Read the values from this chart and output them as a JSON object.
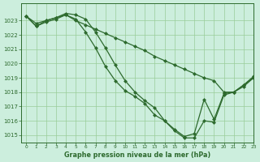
{
  "title": "Graphe pression niveau de la mer (hPa)",
  "bg_color": "#cceedd",
  "grid_color": "#99cc99",
  "line_color": "#2d6a2d",
  "xlim": [
    -0.5,
    23
  ],
  "ylim": [
    1014.5,
    1024.2
  ],
  "yticks": [
    1015,
    1016,
    1017,
    1018,
    1019,
    1020,
    1021,
    1022,
    1023
  ],
  "xticks": [
    0,
    1,
    2,
    3,
    4,
    5,
    6,
    7,
    8,
    9,
    10,
    11,
    12,
    13,
    14,
    15,
    16,
    17,
    18,
    19,
    20,
    21,
    22,
    23
  ],
  "line1_x": [
    0,
    1,
    2,
    3,
    4,
    5,
    6,
    7,
    8,
    9,
    10,
    11,
    12,
    13,
    14,
    15,
    16,
    17,
    18,
    19,
    20,
    21,
    22,
    23
  ],
  "line1_y": [
    1023.3,
    1022.6,
    1023.0,
    1023.2,
    1023.5,
    1023.4,
    1023.1,
    1022.2,
    1021.1,
    1019.9,
    1018.8,
    1018.0,
    1017.4,
    1016.9,
    1016.0,
    1015.3,
    1014.8,
    1014.8,
    1016.0,
    1015.9,
    1017.8,
    1018.0,
    1018.4,
    1019.0
  ],
  "line2_x": [
    0,
    1,
    2,
    3,
    4,
    5,
    6,
    7,
    8,
    9,
    10,
    11,
    12,
    13,
    14,
    15,
    16,
    17,
    18,
    19,
    20,
    21,
    22,
    23
  ],
  "line2_y": [
    1023.3,
    1022.6,
    1022.9,
    1023.1,
    1023.4,
    1023.1,
    1022.2,
    1021.1,
    1019.8,
    1018.8,
    1018.1,
    1017.7,
    1017.2,
    1016.4,
    1016.0,
    1015.4,
    1014.9,
    1015.1,
    1017.5,
    1016.1,
    1017.9,
    1018.0,
    1018.5,
    1019.1
  ],
  "line3_x": [
    0,
    1,
    2,
    3,
    4,
    5,
    6,
    7,
    8,
    9,
    10,
    11,
    12,
    13,
    14,
    15,
    16,
    17,
    18,
    19,
    20,
    21,
    22,
    23
  ],
  "line3_y": [
    1023.3,
    1022.8,
    1023.0,
    1023.2,
    1023.4,
    1023.0,
    1022.7,
    1022.4,
    1022.1,
    1021.8,
    1021.5,
    1021.2,
    1020.9,
    1020.5,
    1020.2,
    1019.9,
    1019.6,
    1019.3,
    1019.0,
    1018.8,
    1018.0,
    1018.0,
    1018.5,
    1019.0
  ]
}
